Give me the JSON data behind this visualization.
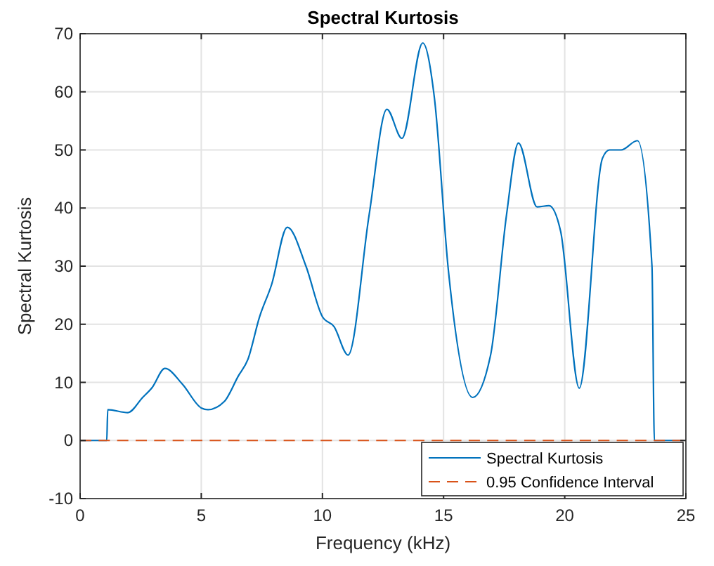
{
  "chart_data": {
    "type": "line",
    "title": "Spectral Kurtosis",
    "xlabel": "Frequency (kHz)",
    "ylabel": "Spectral Kurtosis",
    "xlim": [
      0,
      25
    ],
    "xticks": [
      0,
      5,
      10,
      15,
      20,
      25
    ],
    "ylim": [
      -10,
      70
    ],
    "yticks": [
      -10,
      0,
      10,
      20,
      30,
      40,
      50,
      60,
      70
    ],
    "grid": true,
    "legend": "bottom right",
    "marker": "none",
    "series": [
      {
        "name": "Spectral Kurtosis",
        "color": "#0072bd",
        "line_style": "solid",
        "x": [
          0,
          1.1,
          1.14,
          1.97,
          2.58,
          2.97,
          3.5,
          4.22,
          5.0,
          5.28,
          5.95,
          6.53,
          6.92,
          7.4,
          7.9,
          8.55,
          9.32,
          10.0,
          10.48,
          11.06,
          11.93,
          12.66,
          13.28,
          14.14,
          14.62,
          15.2,
          16.2,
          16.94,
          17.6,
          18.09,
          18.86,
          19.35,
          19.83,
          20.6,
          21.56,
          21.85,
          22.33,
          23.0,
          23.6,
          23.7,
          24.9
        ],
        "values": [
          0,
          0,
          5.3,
          4.8,
          7.4,
          9.1,
          12.4,
          9.7,
          5.6,
          5.3,
          6.7,
          11.1,
          13.9,
          21.2,
          26.8,
          36.7,
          30,
          21.3,
          19.6,
          14.7,
          38.9,
          57,
          52,
          68.4,
          59,
          29.2,
          7.4,
          14.7,
          38.9,
          51.2,
          40.2,
          40.4,
          36,
          9,
          48.6,
          50,
          50,
          51.6,
          30,
          0,
          0
        ]
      },
      {
        "name": "0.95 Confidence Interval",
        "color": "#d95319",
        "line_style": "dashed",
        "x": [
          0,
          24.9
        ],
        "values": [
          0,
          0
        ]
      }
    ]
  }
}
